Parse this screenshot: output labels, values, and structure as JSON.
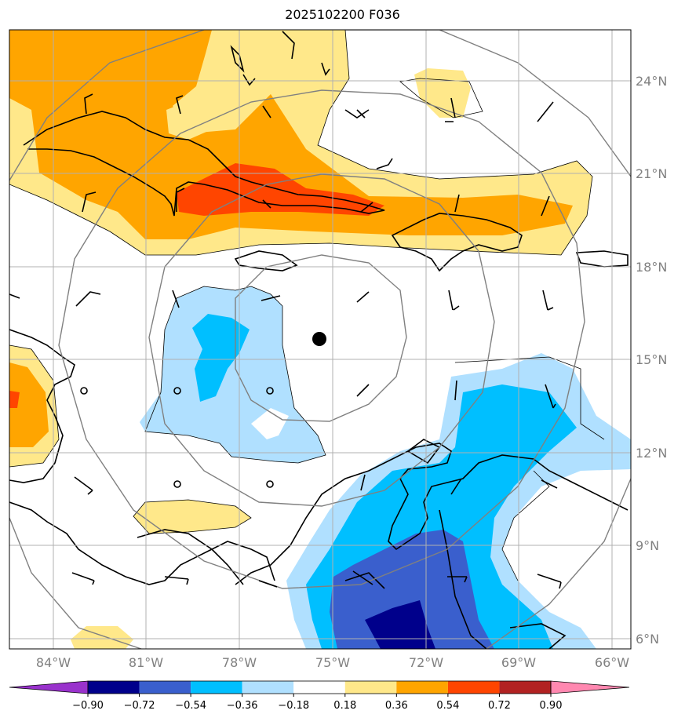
{
  "title": "2025102200 F036",
  "lon_labels": [
    "84°W",
    "81°W",
    "78°W",
    "75°W",
    "72°W",
    "69°W",
    "66°W"
  ],
  "lat_labels": [
    "24°N",
    "21°N",
    "18°N",
    "15°N",
    "12°N",
    "9°N",
    "6°N"
  ],
  "colorbar": {
    "ticks": [
      "−0.90",
      "−0.72",
      "−0.54",
      "−0.36",
      "−0.18",
      "0.18",
      "0.36",
      "0.54",
      "0.72",
      "0.90"
    ],
    "colors": [
      "#9932cc",
      "#00008b",
      "#3a5fcd",
      "#00bfff",
      "#b0e0ff",
      "#ffffff",
      "#ffe88a",
      "#ffa500",
      "#ff4500",
      "#b22222",
      "#ff88b0"
    ]
  },
  "storm_center": {
    "lon": -75.4,
    "lat": 15.6
  },
  "map_extent": {
    "lon": [
      -85.4,
      -64.9
    ],
    "lat": [
      5.7,
      25.9
    ]
  }
}
